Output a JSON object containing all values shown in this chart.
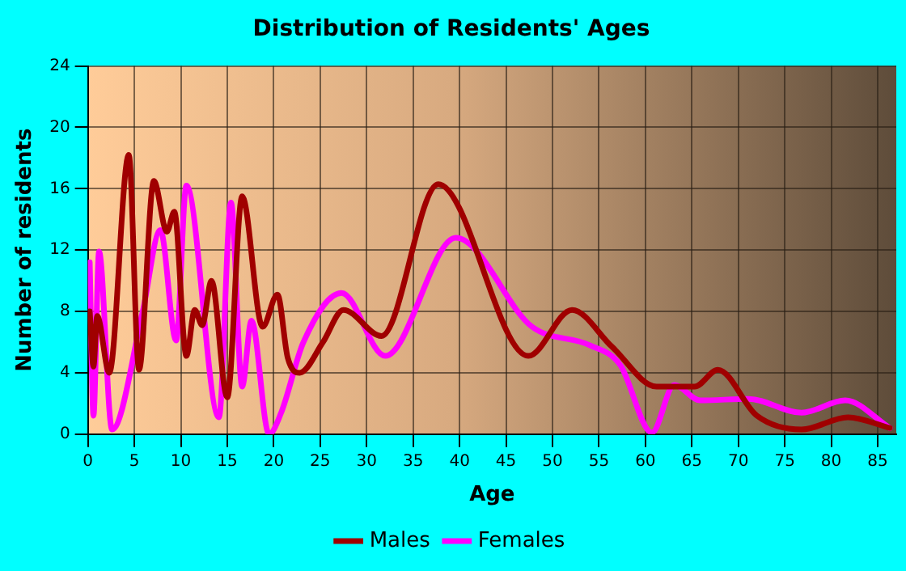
{
  "chart_data": {
    "type": "line",
    "title": "Distribution of Residents' Ages",
    "xlabel": "Age",
    "ylabel": "Number of residents",
    "xlim": [
      0,
      87
    ],
    "xticks": [
      0,
      5,
      10,
      15,
      20,
      25,
      30,
      35,
      40,
      45,
      50,
      55,
      60,
      65,
      70,
      75,
      80,
      85
    ],
    "ylim": [
      0,
      24
    ],
    "yticks": [
      0,
      4,
      8,
      12,
      16,
      20,
      24
    ],
    "grid": true,
    "legend": "bottom",
    "marker": "none",
    "line_style": "solid",
    "series": [
      {
        "name": "Males",
        "color": "#a00000",
        "x": [
          0.2,
          0.6,
          1,
          2.3,
          4.4,
          5.5,
          7.1,
          8.5,
          9.3,
          10.6,
          11.5,
          12.3,
          13.3,
          15,
          16.6,
          18.8,
          20.4,
          21.5,
          22.8,
          25.3,
          27.5,
          31.6,
          37.7,
          47.4,
          52.1,
          56.4,
          61.2,
          65.3,
          67.8,
          72,
          76.8,
          81.8,
          86.3
        ],
        "values": [
          8,
          4.4,
          7.7,
          4,
          18.2,
          4.2,
          16.5,
          13.2,
          14.5,
          5.1,
          8.1,
          7.1,
          10,
          2.4,
          15.5,
          7,
          9.1,
          5,
          4,
          6,
          8.1,
          6.4,
          16.3,
          5.1,
          8.1,
          5.7,
          3.1,
          3.1,
          4.2,
          1.2,
          0.3,
          1.1,
          0.4
        ]
      },
      {
        "name": "Females",
        "color": "#ff00ff",
        "x": [
          0.2,
          0.6,
          1.2,
          2.6,
          5.9,
          7.8,
          9.5,
          10.6,
          14.1,
          15.4,
          16.6,
          17.6,
          19.5,
          20.8,
          23.2,
          27.3,
          32,
          39.6,
          47.8,
          54,
          57.3,
          60.7,
          63.1,
          65.9,
          71.1,
          76.8,
          81.5,
          86.3
        ],
        "values": [
          11.2,
          1.2,
          11.9,
          0.3,
          8,
          13.3,
          6.1,
          16.2,
          1.1,
          15.1,
          3.1,
          7.4,
          0,
          1.4,
          6,
          9.2,
          5.1,
          12.8,
          7,
          5.8,
          4.5,
          0.1,
          3.2,
          2.2,
          2.3,
          1.4,
          2.2,
          0.4
        ]
      }
    ]
  }
}
